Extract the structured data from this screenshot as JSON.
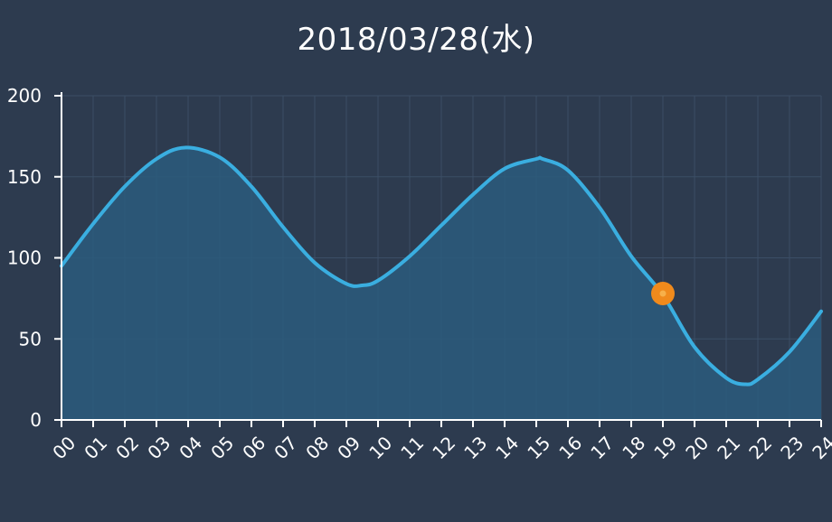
{
  "title": "2018/03/28(水)",
  "colors": {
    "background": "#2d3b4f",
    "line": "#3aaee0",
    "area": "#2b5c7d",
    "grid": "#3b4e66",
    "axis": "#ffffff",
    "marker": "#f08a1c",
    "marker_center": "#f7b04a"
  },
  "chart_data": {
    "type": "area",
    "title": "2018/03/28(水)",
    "xlabel": "",
    "ylabel": "",
    "x_ticks": [
      "00",
      "01",
      "02",
      "03",
      "04",
      "05",
      "06",
      "07",
      "08",
      "09",
      "10",
      "11",
      "12",
      "13",
      "14",
      "15",
      "16",
      "17",
      "18",
      "19",
      "20",
      "21",
      "22",
      "23",
      "24"
    ],
    "y_ticks": [
      0,
      50,
      100,
      150,
      200
    ],
    "xlim": [
      0,
      24
    ],
    "ylim": [
      0,
      200
    ],
    "grid": true,
    "legend": "none",
    "series": [
      {
        "x": [
          0,
          1,
          2,
          3,
          3.9,
          5,
          6,
          7,
          8,
          9,
          9.5,
          10,
          11,
          12,
          13,
          14,
          15,
          15.2,
          16,
          17,
          18,
          19,
          20,
          21,
          21.6,
          22,
          23,
          24
        ],
        "values": [
          95,
          121,
          144,
          161,
          168,
          162,
          144,
          119,
          97,
          84,
          83,
          86,
          101,
          120,
          139,
          155,
          161,
          161,
          154,
          131,
          101,
          77,
          45,
          26,
          22,
          25,
          42,
          67
        ]
      }
    ],
    "highlight_point": {
      "x": 19,
      "y": 78
    }
  }
}
